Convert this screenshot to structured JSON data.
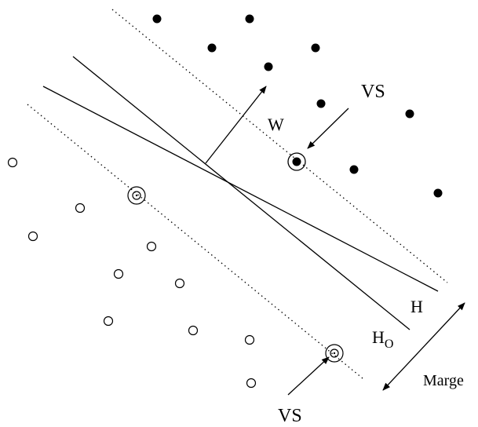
{
  "labels": {
    "w": "W",
    "vs_top": "VS",
    "vs_bottom": "VS",
    "h": "H",
    "ho_main": "H",
    "ho_sub": "O",
    "marge": "Marge"
  },
  "colors": {
    "ink": "#000000",
    "background": "#ffffff"
  }
}
